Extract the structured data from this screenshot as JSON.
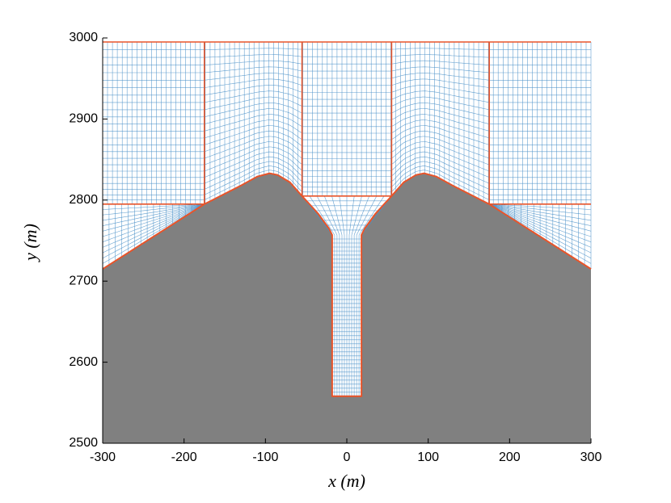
{
  "chart_data": {
    "type": "mesh",
    "xlabel": "x (m)",
    "ylabel": "y (m)",
    "xlim": [
      -300,
      300
    ],
    "ylim": [
      2500,
      3000
    ],
    "xticks": [
      -300,
      -200,
      -100,
      0,
      100,
      200,
      300
    ],
    "yticks": [
      2500,
      2600,
      2700,
      2800,
      2900,
      3000
    ],
    "terrain": {
      "x": [
        -300,
        -175,
        -130,
        -110,
        -95,
        -85,
        -70,
        -55,
        -35,
        -22,
        -18,
        -18,
        18,
        18,
        22,
        35,
        55,
        70,
        85,
        95,
        110,
        130,
        175,
        300
      ],
      "values": [
        2715,
        2795,
        2818,
        2829,
        2833,
        2831,
        2822,
        2805,
        2783,
        2765,
        2757,
        2558,
        2558,
        2757,
        2765,
        2783,
        2805,
        2822,
        2831,
        2833,
        2829,
        2818,
        2795,
        2715
      ]
    },
    "block_x": [
      -300,
      -175,
      -55,
      55,
      175,
      300
    ],
    "top": 2995,
    "block_base": 2795,
    "center_base": 2805,
    "well": {
      "x": [
        -18,
        18
      ],
      "y": [
        2558,
        2757
      ]
    },
    "terrain_color": "#808080",
    "boundary_color": "#e8542a",
    "mesh_color": "#4a90c8"
  }
}
